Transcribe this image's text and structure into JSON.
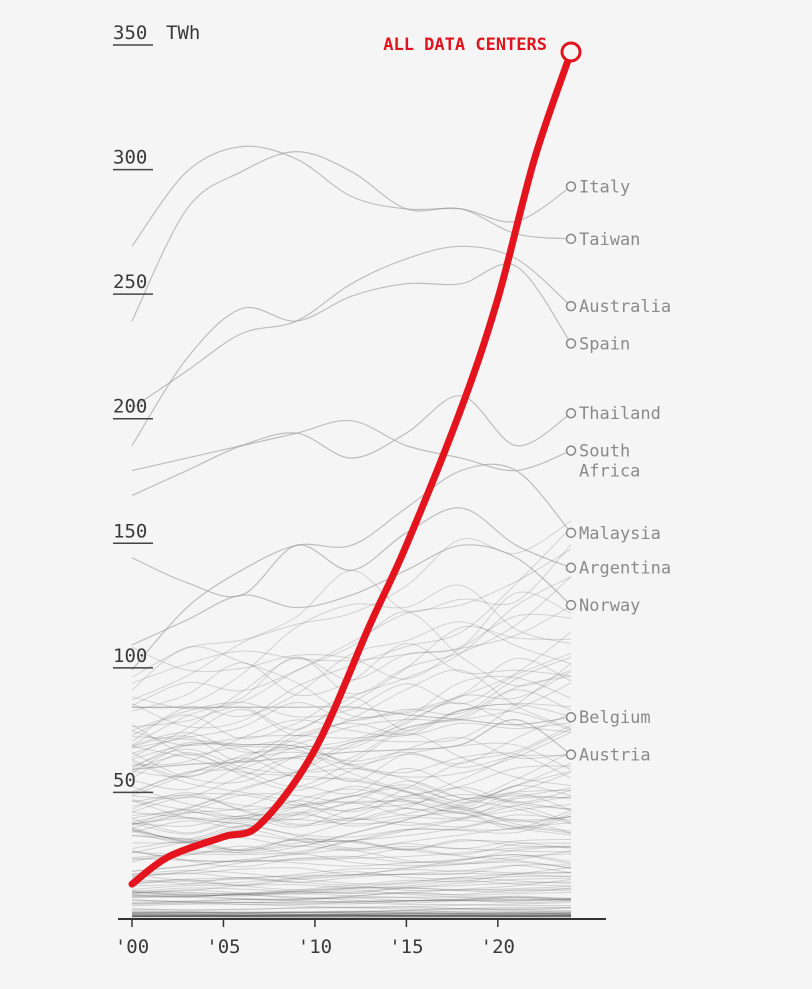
{
  "chart_data": {
    "type": "line",
    "unit_label": "TWh",
    "ylim": [
      0,
      350
    ],
    "xlim": [
      2000,
      2024
    ],
    "y_ticks": [
      {
        "value": 50,
        "label": "50"
      },
      {
        "value": 100,
        "label": "100"
      },
      {
        "value": 150,
        "label": "150"
      },
      {
        "value": 200,
        "label": "200"
      },
      {
        "value": 250,
        "label": "250"
      },
      {
        "value": 300,
        "label": "300"
      },
      {
        "value": 350,
        "label": "350"
      }
    ],
    "x_ticks": [
      {
        "value": 2000,
        "label": "'00"
      },
      {
        "value": 2005,
        "label": "'05"
      },
      {
        "value": 2010,
        "label": "'10"
      },
      {
        "value": 2015,
        "label": "'15"
      },
      {
        "value": 2020,
        "label": "'20"
      }
    ],
    "highlight": {
      "name": "ALL DATA CENTERS",
      "color": "#e3141e",
      "x": [
        2000,
        2002,
        2005,
        2007,
        2010,
        2013,
        2015,
        2018,
        2020,
        2022,
        2024
      ],
      "y": [
        14,
        25,
        33,
        38,
        68,
        118,
        150,
        205,
        249,
        305,
        348
      ]
    },
    "x": [
      2000,
      2003,
      2006,
      2009,
      2012,
      2015,
      2018,
      2021,
      2024
    ],
    "series": [
      {
        "name": "Italy",
        "values": [
          270,
          300,
          310,
          305,
          290,
          285,
          285,
          280,
          294
        ]
      },
      {
        "name": "Taiwan",
        "values": [
          240,
          285,
          300,
          308,
          300,
          285,
          285,
          275,
          273
        ]
      },
      {
        "name": "Australia",
        "values": [
          205,
          220,
          235,
          240,
          255,
          265,
          270,
          265,
          246
        ]
      },
      {
        "name": "Spain",
        "values": [
          190,
          225,
          245,
          240,
          250,
          255,
          255,
          262,
          231
        ]
      },
      {
        "name": "Thailand",
        "values": [
          170,
          180,
          190,
          195,
          185,
          195,
          210,
          190,
          203
        ]
      },
      {
        "name": "South Africa",
        "values": [
          180,
          185,
          190,
          195,
          200,
          190,
          185,
          180,
          188
        ]
      },
      {
        "name": "Malaysia",
        "values": [
          100,
          125,
          140,
          150,
          150,
          165,
          180,
          180,
          155
        ]
      },
      {
        "name": "Argentina",
        "values": [
          145,
          135,
          130,
          150,
          140,
          155,
          165,
          150,
          141
        ]
      },
      {
        "name": "Norway",
        "values": [
          110,
          120,
          130,
          125,
          130,
          140,
          150,
          145,
          126
        ]
      },
      {
        "name": "Belgium",
        "values": [
          85,
          85,
          85,
          85,
          85,
          82,
          80,
          78,
          81
        ]
      },
      {
        "name": "Austria",
        "values": [
          60,
          62,
          63,
          65,
          67,
          68,
          70,
          80,
          66
        ]
      }
    ],
    "line_color": "#9a9a9a"
  }
}
